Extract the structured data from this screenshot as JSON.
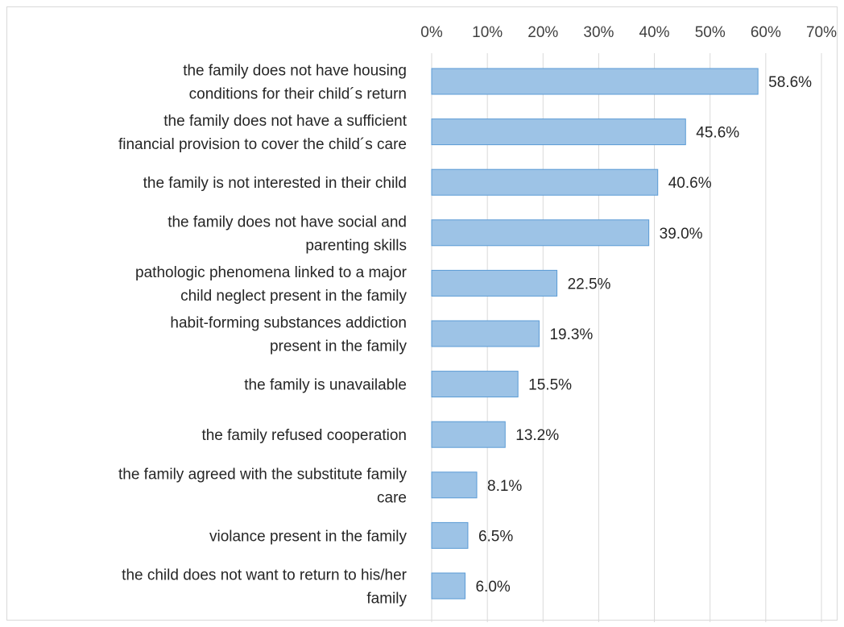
{
  "chart_data": {
    "type": "bar",
    "orientation": "horizontal",
    "title": "",
    "xlabel": "",
    "ylabel": "",
    "xlim": [
      0,
      70
    ],
    "x_ticks": [
      "0%",
      "10%",
      "20%",
      "30%",
      "40%",
      "50%",
      "60%",
      "70%"
    ],
    "x_axis_position": "top",
    "grid": true,
    "legend": "none",
    "bar_color": "#9dc3e6",
    "bar_edge_color": "#5b9bd5",
    "categories": [
      [
        "the family does not have housing",
        "conditions for their child´s return"
      ],
      [
        "the family does not have a sufficient",
        "financial provision to cover  the child´s care"
      ],
      [
        "the family is not interested in their child"
      ],
      [
        "the family does not have social and",
        "parenting skills"
      ],
      [
        "pathologic phenomena linked to a major",
        "child neglect present in the family"
      ],
      [
        "habit-forming substances  addiction",
        "present in the family"
      ],
      [
        "the family is unavailable"
      ],
      [
        "the family refused cooperation"
      ],
      [
        "the family agreed with the substitute family",
        "care"
      ],
      [
        "violance present in the family"
      ],
      [
        "the child does not want to return to his/her",
        "family"
      ]
    ],
    "values": [
      58.6,
      45.6,
      40.6,
      39.0,
      22.5,
      19.3,
      15.5,
      13.2,
      8.1,
      6.5,
      6.0
    ],
    "data_labels": [
      "58.6%",
      "45.6%",
      "40.6%",
      "39.0%",
      "22.5%",
      "19.3%",
      "15.5%",
      "13.2%",
      "8.1%",
      "6.5%",
      "6.0%"
    ]
  }
}
